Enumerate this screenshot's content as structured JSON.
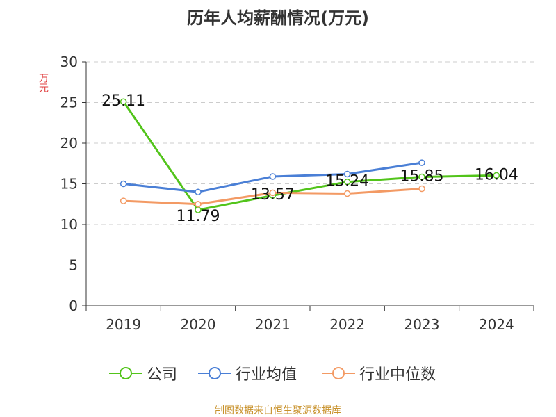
{
  "source_note": "制图数据来自恒生聚源数据库",
  "chart_data": {
    "type": "line",
    "title": "历年人均薪酬情况(万元)",
    "ylabel": "万元",
    "xlabel": "",
    "categories": [
      "2019",
      "2020",
      "2021",
      "2022",
      "2023",
      "2024"
    ],
    "ylim": [
      0,
      30
    ],
    "yticks": [
      0,
      5,
      10,
      15,
      20,
      25,
      30
    ],
    "grid": true,
    "legend_position": "bottom",
    "series": [
      {
        "name": "公司",
        "color": "#52c41a",
        "values": [
          25.11,
          11.79,
          13.57,
          15.24,
          15.85,
          16.04
        ],
        "labels": [
          "25.11",
          "11.79",
          "13.57",
          "15.24",
          "15.85",
          "16.04"
        ]
      },
      {
        "name": "行业均值",
        "color": "#4a7fd6",
        "values": [
          15.0,
          14.0,
          15.9,
          16.2,
          17.6,
          null
        ]
      },
      {
        "name": "行业中位数",
        "color": "#f39a64",
        "values": [
          12.9,
          12.5,
          13.9,
          13.8,
          14.4,
          null
        ]
      }
    ]
  }
}
